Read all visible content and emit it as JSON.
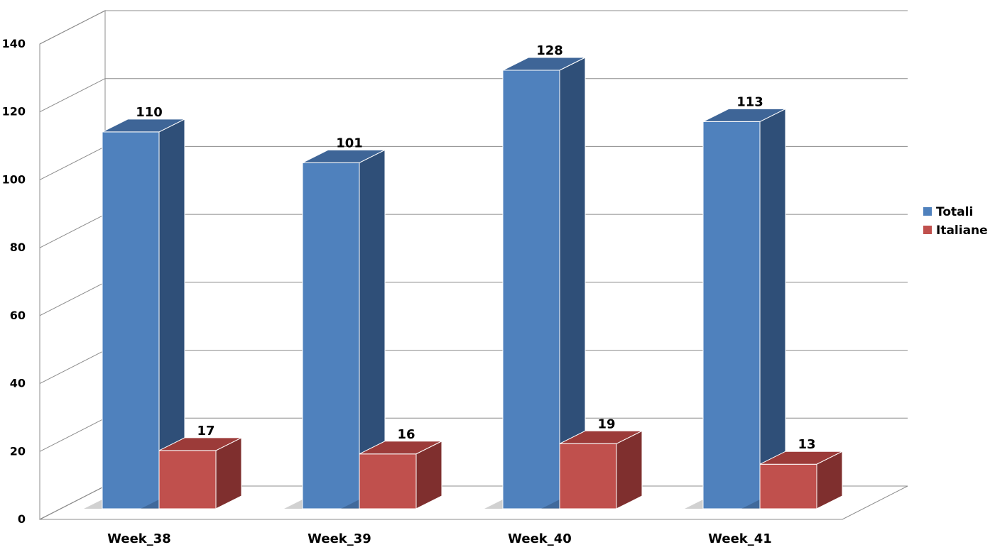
{
  "chart_data": {
    "type": "bar",
    "categories": [
      "Week_38",
      "Week_39",
      "Week_40",
      "Week_41"
    ],
    "series": [
      {
        "name": "Totali",
        "values": [
          110,
          101,
          128,
          113
        ],
        "color": "#4F81BD",
        "side_color": "#2F4F78",
        "top_color": "#3E6597"
      },
      {
        "name": "Italiane",
        "values": [
          17,
          16,
          19,
          13
        ],
        "color": "#C0504D",
        "side_color": "#7F2F2E",
        "top_color": "#9C3B39"
      }
    ],
    "ylim": [
      0,
      140
    ],
    "yticks": [
      0,
      20,
      40,
      60,
      80,
      100,
      120,
      140
    ],
    "grid": true,
    "legend_position": "right",
    "view": "3d-clustered-column"
  }
}
